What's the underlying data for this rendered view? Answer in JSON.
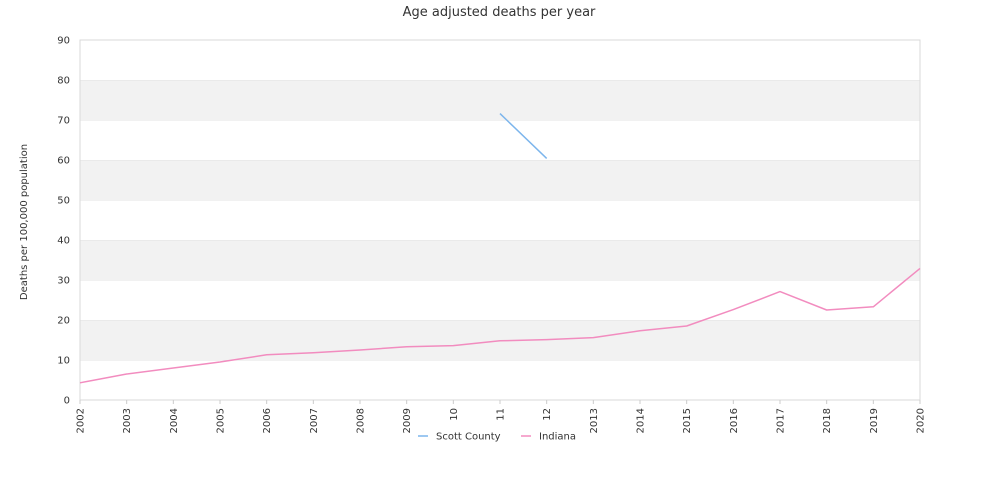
{
  "chart_data": {
    "type": "line",
    "title": "Age adjusted deaths per year",
    "xlabel": "",
    "ylabel": "Deaths per 100,000 population",
    "ylim": [
      0,
      90
    ],
    "yticks": [
      0,
      10,
      20,
      30,
      40,
      50,
      60,
      70,
      80,
      90
    ],
    "x": [
      "2002",
      "2003",
      "2004",
      "2005",
      "2006",
      "2007",
      "2008",
      "2009",
      "10",
      "11",
      "12",
      "2013",
      "2014",
      "2015",
      "2016",
      "2017",
      "2018",
      "2019",
      "2020"
    ],
    "grid": "alternating horizontal bands",
    "legend_position": "bottom-center",
    "series": [
      {
        "name": "Scott County",
        "color": "#7cb5ec",
        "values": [
          null,
          null,
          null,
          null,
          null,
          null,
          null,
          null,
          null,
          71.6,
          60.4,
          null,
          null,
          null,
          null,
          null,
          null,
          null,
          null
        ]
      },
      {
        "name": "Indiana",
        "color": "#f28cbf",
        "values": [
          4.3,
          6.5,
          8.0,
          9.5,
          11.3,
          11.8,
          12.5,
          13.3,
          13.6,
          14.8,
          15.1,
          15.6,
          17.3,
          18.5,
          22.6,
          27.1,
          22.5,
          23.3,
          32.9
        ]
      }
    ]
  }
}
